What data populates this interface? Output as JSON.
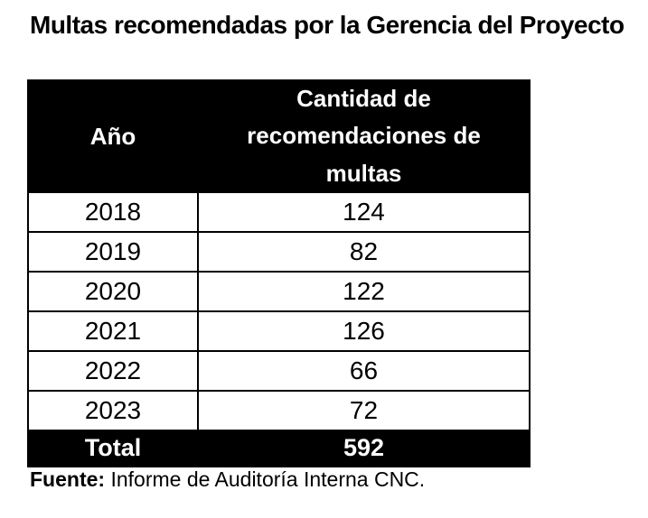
{
  "page": {
    "title": "Multas recomendadas por la Gerencia del Proyecto"
  },
  "table": {
    "columns": {
      "year": "Año",
      "count": "Cantidad de recomendaciones de multas"
    },
    "rows": [
      {
        "year": "2018",
        "count": "124"
      },
      {
        "year": "2019",
        "count": "82"
      },
      {
        "year": "2020",
        "count": "122"
      },
      {
        "year": "2021",
        "count": "126"
      },
      {
        "year": "2022",
        "count": "66"
      },
      {
        "year": "2023",
        "count": "72"
      }
    ],
    "total": {
      "label": "Total",
      "value": "592"
    }
  },
  "source": {
    "label": "Fuente:",
    "text": " Informe de Auditoría Interna CNC."
  },
  "colors": {
    "header_bg": "#000000",
    "header_text": "#ffffff",
    "border": "#000000",
    "body_text": "#000000",
    "background": "#ffffff"
  },
  "chart_data": {
    "type": "table",
    "title": "Multas recomendadas por la Gerencia del Proyecto",
    "columns": [
      "Año",
      "Cantidad de recomendaciones de multas"
    ],
    "categories": [
      "2018",
      "2019",
      "2020",
      "2021",
      "2022",
      "2023"
    ],
    "values": [
      124,
      82,
      122,
      126,
      66,
      72
    ],
    "total": 592,
    "source": "Fuente: Informe de Auditoría Interna CNC."
  }
}
